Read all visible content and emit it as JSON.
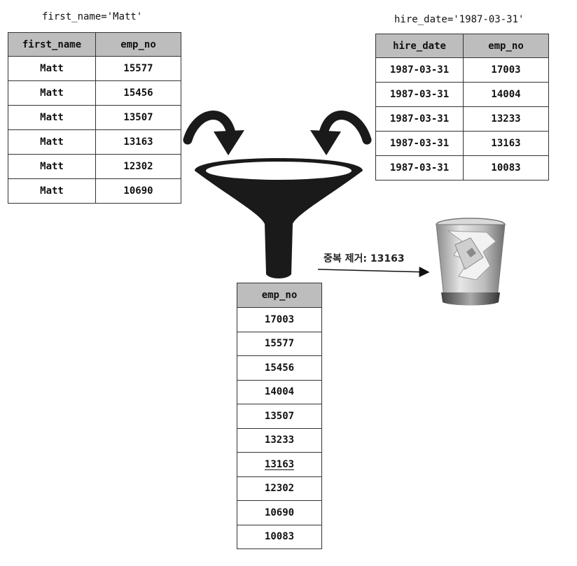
{
  "left": {
    "caption": "first_name='Matt'",
    "headers": [
      "first_name",
      "emp_no"
    ],
    "rows": [
      [
        "Matt",
        "15577"
      ],
      [
        "Matt",
        "15456"
      ],
      [
        "Matt",
        "13507"
      ],
      [
        "Matt",
        "13163"
      ],
      [
        "Matt",
        "12302"
      ],
      [
        "Matt",
        "10690"
      ]
    ]
  },
  "right": {
    "caption": "hire_date='1987-03-31'",
    "headers": [
      "hire_date",
      "emp_no"
    ],
    "rows": [
      [
        "1987-03-31",
        "17003"
      ],
      [
        "1987-03-31",
        "14004"
      ],
      [
        "1987-03-31",
        "13233"
      ],
      [
        "1987-03-31",
        "13163"
      ],
      [
        "1987-03-31",
        "10083"
      ]
    ]
  },
  "result": {
    "header": "emp_no",
    "rows": [
      "17003",
      "15577",
      "15456",
      "14004",
      "13507",
      "13233",
      "13163",
      "12302",
      "10690",
      "10083"
    ],
    "highlight": "13163"
  },
  "note": "중복 제거: 13163",
  "icons": [
    "curved-arrow-icon",
    "funnel-icon",
    "trash-bin-icon"
  ]
}
